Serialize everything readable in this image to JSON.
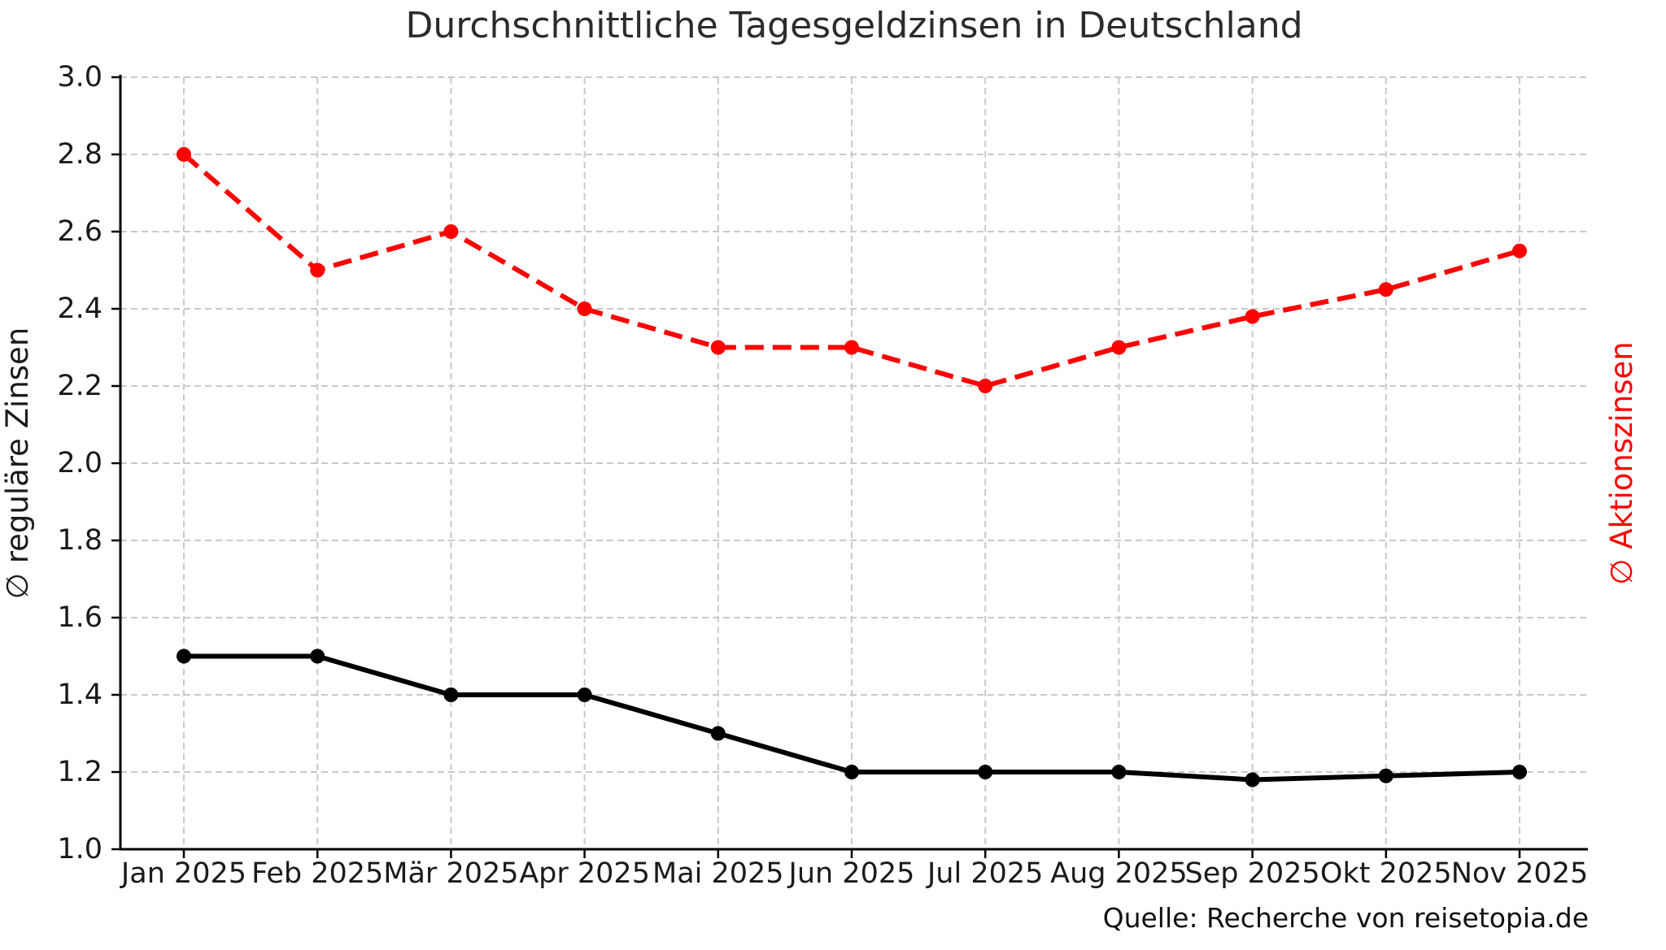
{
  "chart_data": {
    "type": "line",
    "title": "Durchschnittliche Tagesgeldzinsen in Deutschland",
    "categories": [
      "Jan 2025",
      "Feb 2025",
      "Mär 2025",
      "Apr 2025",
      "Mai 2025",
      "Jun 2025",
      "Jul 2025",
      "Aug 2025",
      "Sep 2025",
      "Okt 2025",
      "Nov 2025"
    ],
    "series": [
      {
        "name": "∅ reguläre Zinsen",
        "axis": "left",
        "color": "#000000",
        "line_style": "solid",
        "marker": "circle",
        "values": [
          1.5,
          1.5,
          1.4,
          1.4,
          1.3,
          1.2,
          1.2,
          1.2,
          1.18,
          1.19,
          1.2
        ]
      },
      {
        "name": "∅ Aktionszinsen",
        "axis": "right",
        "color": "#ff0000",
        "line_style": "dashed",
        "marker": "circle",
        "values": [
          2.8,
          2.5,
          2.6,
          2.4,
          2.3,
          2.3,
          2.2,
          2.3,
          2.38,
          2.45,
          2.55
        ]
      }
    ],
    "ylabel_left": "∅ reguläre Zinsen",
    "ylabel_right": "∅ Aktionszinsen",
    "ylim": [
      1.0,
      3.0
    ],
    "yticks": [
      "1.0",
      "1.2",
      "1.4",
      "1.6",
      "1.8",
      "2.0",
      "2.2",
      "2.4",
      "2.6",
      "2.8",
      "3.0"
    ],
    "grid": true,
    "grid_style": "dashed",
    "legend_position": "none",
    "source": "Quelle: Recherche von reisetopia.de",
    "colors": {
      "regular_series": "#000000",
      "promo_series": "#ff0000",
      "grid": "#c9c9c9",
      "axis": "#000000",
      "tick_text": "#1a1a1a",
      "title_text": "#2b2b2b"
    }
  }
}
